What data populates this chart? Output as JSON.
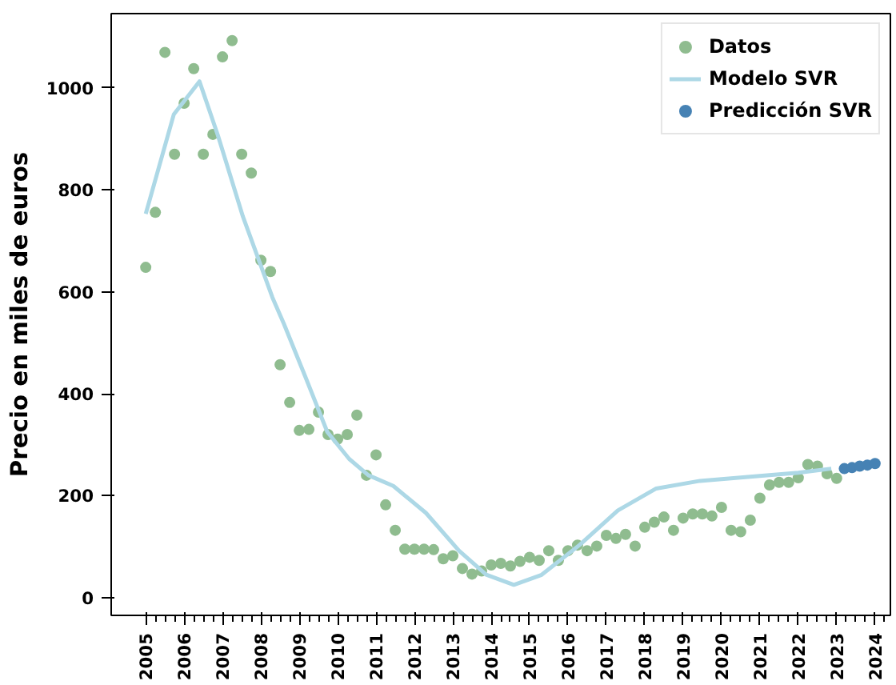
{
  "chart_data": {
    "type": "scatter",
    "ylabel": "Precio en miles de euros",
    "xlim": [
      2004.1,
      2024.4
    ],
    "ylim": [
      -35,
      1146
    ],
    "xticks": [
      2005,
      2006,
      2007,
      2008,
      2009,
      2010,
      2011,
      2012,
      2013,
      2014,
      2015,
      2016,
      2017,
      2018,
      2019,
      2020,
      2021,
      2022,
      2023,
      2024
    ],
    "yticks": [
      0,
      200,
      400,
      600,
      800,
      1000
    ],
    "grid": false,
    "legend": "top right",
    "series": [
      {
        "name": "Datos",
        "marker": "circle",
        "color": "#8fbc8f",
        "x": [
          2005.0,
          2005.25,
          2005.5,
          2005.75,
          2006.0,
          2006.25,
          2006.5,
          2006.75,
          2007.0,
          2007.25,
          2007.5,
          2007.75,
          2008.0,
          2008.25,
          2008.5,
          2008.75,
          2009.0,
          2009.25,
          2009.5,
          2009.75,
          2010.0,
          2010.25,
          2010.5,
          2010.75,
          2011.0,
          2011.25,
          2011.5,
          2011.75,
          2012.0,
          2012.25,
          2012.5,
          2012.75,
          2013.0,
          2013.25,
          2013.5,
          2013.75,
          2014.0,
          2014.25,
          2014.5,
          2014.75,
          2015.0,
          2015.25,
          2015.5,
          2015.75,
          2016.0,
          2016.25,
          2016.5,
          2016.75,
          2017.0,
          2017.25,
          2017.5,
          2017.75,
          2018.0,
          2018.25,
          2018.5,
          2018.75,
          2019.0,
          2019.25,
          2019.5,
          2019.75,
          2020.0,
          2020.25,
          2020.5,
          2020.75,
          2021.0,
          2021.25,
          2021.5,
          2021.75,
          2022.0,
          2022.25,
          2022.5,
          2022.75,
          2023.0
        ],
        "values": [
          648,
          756,
          1070,
          870,
          970,
          1038,
          870,
          909,
          1061,
          1093,
          870,
          833,
          662,
          640,
          457,
          383,
          328,
          330,
          364,
          320,
          311,
          320,
          358,
          240,
          280,
          182,
          132,
          95,
          95,
          95,
          94,
          76,
          82,
          57,
          46,
          52,
          64,
          67,
          62,
          71,
          79,
          73,
          92,
          73,
          92,
          103,
          92,
          101,
          122,
          116,
          124,
          101,
          138,
          148,
          158,
          132,
          156,
          164,
          164,
          160,
          177,
          132,
          129,
          152,
          195,
          221,
          226,
          226,
          235,
          261,
          258,
          243,
          234
        ]
      },
      {
        "name": "Modelo SVR",
        "type": "line",
        "line_style": "solid",
        "color": "#add8e6",
        "x": [
          2005.0,
          2005.73,
          2006.4,
          2006.88,
          2007.53,
          2008.3,
          2008.6,
          2009.17,
          2009.73,
          2010.3,
          2010.8,
          2011.45,
          2012.3,
          2013.16,
          2013.87,
          2014.59,
          2015.3,
          2016.3,
          2017.3,
          2018.3,
          2019.44,
          2020.87,
          2022.0,
          2022.86
        ],
        "values": [
          753,
          948,
          1013,
          907,
          748,
          589,
          537,
          431,
          325,
          272,
          240,
          219,
          166,
          92,
          45,
          25,
          44,
          103,
          171,
          214,
          229,
          238,
          245,
          253
        ]
      },
      {
        "name": "Predicción SVR",
        "marker": "circle",
        "color": "#4682b4",
        "x": [
          2023.2,
          2023.4,
          2023.6,
          2023.8,
          2024.0
        ],
        "values": [
          253,
          255,
          258,
          260,
          263
        ]
      }
    ]
  }
}
